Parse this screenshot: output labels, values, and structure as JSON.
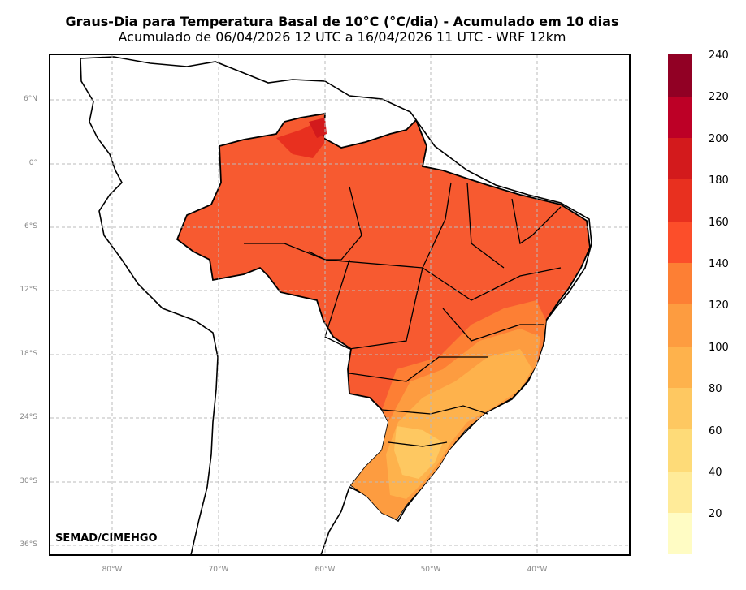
{
  "title": "Graus-Dia para Temperatura Basal de 10°C (°C/dia) - Acumulado em 10 dias",
  "subtitle": "Acumulado de 06/04/2026 12 UTC a 16/04/2026 11 UTC - WRF 12km",
  "credit": "SEMAD/CIMEHGO",
  "map": {
    "region": "Brazil",
    "lon_range": [
      -86,
      -31.5
    ],
    "lat_range": [
      -37,
      10.5
    ],
    "gridlines": true,
    "lat_ticks": [
      "6°N",
      "0°",
      "6°S",
      "12°S",
      "18°S",
      "24°S",
      "30°S",
      "36°S"
    ],
    "lon_ticks": [
      "80°W",
      "70°W",
      "60°W",
      "50°W",
      "40°W"
    ]
  },
  "colorbar": {
    "levels": [
      "240",
      "220",
      "200",
      "180",
      "160",
      "140",
      "120",
      "100",
      "80",
      "60",
      "40",
      "20"
    ],
    "colors": [
      "#fffcc4",
      "#ffeb99",
      "#fedb78",
      "#fec861",
      "#feb24c",
      "#fd9c40",
      "#fd7f34",
      "#fc4e2a",
      "#e8301f",
      "#d31a1c",
      "#bd0026",
      "#910024"
    ]
  }
}
